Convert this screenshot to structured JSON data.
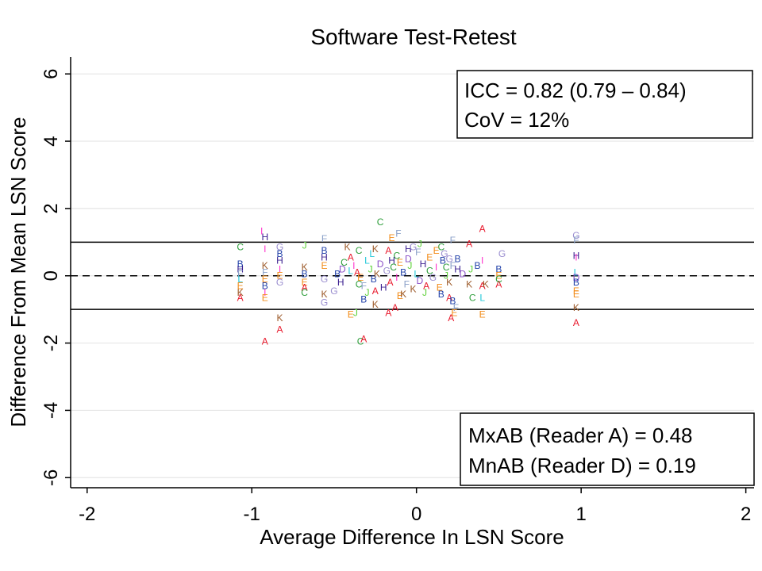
{
  "chart_data": {
    "type": "scatter",
    "title": "Software Test-Retest",
    "xlabel": "Average Difference In LSN Score",
    "ylabel": "Difference From Mean LSN Score",
    "xlim": [
      -2.1,
      2.05
    ],
    "ylim": [
      -6.3,
      6.5
    ],
    "xticks": [
      -2,
      -1,
      0,
      1,
      2
    ],
    "yticks": [
      -6,
      -4,
      -2,
      0,
      2,
      4,
      6
    ],
    "grid": "horizontal",
    "reference_lines": [
      {
        "y": 1,
        "style": "solid"
      },
      {
        "y": 0,
        "style": "dashed"
      },
      {
        "y": -1,
        "style": "solid"
      }
    ],
    "stats_box_top": {
      "line1": "ICC  = 0.82 (0.79 – 0.84)",
      "line2": "CoV = 12%"
    },
    "stats_box_bottom": {
      "line1": "MxAB (Reader A) = 0.48",
      "line2": "MnAB (Reader D) = 0.19"
    },
    "marker_colors": {
      "A": "#e8192c",
      "B": "#1f3fa8",
      "C": "#2e9e3b",
      "D": "#8a4fc7",
      "E": "#f28c1a",
      "F": "#8aa0c8",
      "G": "#9b8fd0",
      "H": "#3a1f8f",
      "I": "#ff33cc",
      "J": "#5fd13a",
      "K": "#9c5a2a",
      "L": "#22c8d8"
    },
    "points": [
      {
        "r": "I",
        "x": -0.94,
        "y": 1.33
      },
      {
        "r": "H",
        "x": -0.92,
        "y": 1.15
      },
      {
        "r": "I",
        "x": -0.92,
        "y": 0.8
      },
      {
        "r": "C",
        "x": -1.07,
        "y": 0.85
      },
      {
        "r": "B",
        "x": -1.07,
        "y": 0.35
      },
      {
        "r": "H",
        "x": -1.07,
        "y": 0.2
      },
      {
        "r": "F",
        "x": -1.07,
        "y": 0.05
      },
      {
        "r": "L",
        "x": -1.07,
        "y": -0.1
      },
      {
        "r": "E",
        "x": -1.07,
        "y": -0.3
      },
      {
        "r": "K",
        "x": -1.07,
        "y": -0.5
      },
      {
        "r": "A",
        "x": -1.07,
        "y": -0.65
      },
      {
        "r": "K",
        "x": -0.92,
        "y": 0.3
      },
      {
        "r": "F",
        "x": -0.92,
        "y": 0.1
      },
      {
        "r": "E",
        "x": -0.92,
        "y": -0.1
      },
      {
        "r": "B",
        "x": -0.92,
        "y": -0.3
      },
      {
        "r": "I",
        "x": -0.92,
        "y": -0.5
      },
      {
        "r": "E",
        "x": -0.92,
        "y": -0.65
      },
      {
        "r": "G",
        "x": -0.83,
        "y": 0.85
      },
      {
        "r": "B",
        "x": -0.83,
        "y": 0.65
      },
      {
        "r": "H",
        "x": -0.83,
        "y": 0.45
      },
      {
        "r": "I",
        "x": -0.83,
        "y": 0.2
      },
      {
        "r": "E",
        "x": -0.83,
        "y": 0.0
      },
      {
        "r": "G",
        "x": -0.83,
        "y": -0.2
      },
      {
        "r": "K",
        "x": -0.83,
        "y": -1.25
      },
      {
        "r": "A",
        "x": -0.83,
        "y": -1.6
      },
      {
        "r": "A",
        "x": -0.92,
        "y": -1.95
      },
      {
        "r": "J",
        "x": -0.68,
        "y": 0.9
      },
      {
        "r": "K",
        "x": -0.68,
        "y": 0.25
      },
      {
        "r": "B",
        "x": -0.68,
        "y": 0.05
      },
      {
        "r": "E",
        "x": -0.68,
        "y": -0.2
      },
      {
        "r": "A",
        "x": -0.68,
        "y": -0.35
      },
      {
        "r": "C",
        "x": -0.68,
        "y": -0.5
      },
      {
        "r": "F",
        "x": -0.56,
        "y": 1.1
      },
      {
        "r": "B",
        "x": -0.56,
        "y": 0.75
      },
      {
        "r": "H",
        "x": -0.56,
        "y": 0.55
      },
      {
        "r": "E",
        "x": -0.56,
        "y": 0.3
      },
      {
        "r": "G",
        "x": -0.56,
        "y": -0.1
      },
      {
        "r": "K",
        "x": -0.56,
        "y": -0.55
      },
      {
        "r": "G",
        "x": -0.56,
        "y": -0.8
      },
      {
        "r": "G",
        "x": -0.5,
        "y": -0.45
      },
      {
        "r": "K",
        "x": -0.42,
        "y": 0.85
      },
      {
        "r": "C",
        "x": -0.35,
        "y": 0.75
      },
      {
        "r": "A",
        "x": -0.4,
        "y": 0.55
      },
      {
        "r": "E",
        "x": -0.4,
        "y": -1.15
      },
      {
        "r": "J",
        "x": -0.37,
        "y": -1.1
      },
      {
        "r": "C",
        "x": -0.34,
        "y": -1.95
      },
      {
        "r": "A",
        "x": -0.32,
        "y": -1.88
      },
      {
        "r": "C",
        "x": -0.22,
        "y": 1.6
      },
      {
        "r": "F",
        "x": -0.11,
        "y": 1.25
      },
      {
        "r": "E",
        "x": -0.15,
        "y": 1.12
      },
      {
        "r": "K",
        "x": -0.25,
        "y": 0.8
      },
      {
        "r": "A",
        "x": -0.17,
        "y": 0.75
      },
      {
        "r": "H",
        "x": -0.05,
        "y": 0.8
      },
      {
        "r": "C",
        "x": -0.12,
        "y": 0.6
      },
      {
        "r": "L",
        "x": -0.27,
        "y": 0.65
      },
      {
        "r": "G",
        "x": -0.02,
        "y": 0.85
      },
      {
        "r": "J",
        "x": 0.02,
        "y": 0.95
      },
      {
        "r": "F",
        "x": 0.01,
        "y": 0.7
      },
      {
        "r": "A",
        "x": -0.17,
        "y": -1.1
      },
      {
        "r": "A",
        "x": -0.13,
        "y": -0.95
      },
      {
        "r": "K",
        "x": -0.25,
        "y": -0.85
      },
      {
        "r": "B",
        "x": -0.32,
        "y": -0.7
      },
      {
        "r": "E",
        "x": -0.1,
        "y": -0.6
      },
      {
        "r": "J",
        "x": -0.3,
        "y": -0.5
      },
      {
        "r": "D",
        "x": -0.45,
        "y": 0.2
      },
      {
        "r": "B",
        "x": -0.48,
        "y": 0.05
      },
      {
        "r": "H",
        "x": -0.46,
        "y": -0.2
      },
      {
        "r": "C",
        "x": -0.44,
        "y": 0.4
      },
      {
        "r": "I",
        "x": -0.38,
        "y": 0.3
      },
      {
        "r": "A",
        "x": -0.36,
        "y": 0.1
      },
      {
        "r": "E",
        "x": -0.34,
        "y": -0.05
      },
      {
        "r": "F",
        "x": -0.32,
        "y": -0.3
      },
      {
        "r": "L",
        "x": -0.3,
        "y": 0.45
      },
      {
        "r": "J",
        "x": -0.28,
        "y": 0.2
      },
      {
        "r": "B",
        "x": -0.26,
        "y": -0.1
      },
      {
        "r": "K",
        "x": -0.24,
        "y": 0.05
      },
      {
        "r": "D",
        "x": -0.22,
        "y": 0.35
      },
      {
        "r": "H",
        "x": -0.2,
        "y": -0.35
      },
      {
        "r": "G",
        "x": -0.18,
        "y": 0.15
      },
      {
        "r": "A",
        "x": -0.16,
        "y": -0.2
      },
      {
        "r": "C",
        "x": -0.14,
        "y": 0.25
      },
      {
        "r": "I",
        "x": -0.12,
        "y": -0.05
      },
      {
        "r": "E",
        "x": -0.1,
        "y": 0.4
      },
      {
        "r": "B",
        "x": -0.08,
        "y": 0.1
      },
      {
        "r": "F",
        "x": -0.06,
        "y": -0.25
      },
      {
        "r": "J",
        "x": -0.04,
        "y": 0.3
      },
      {
        "r": "K",
        "x": -0.02,
        "y": -0.4
      },
      {
        "r": "L",
        "x": 0.0,
        "y": 0.05
      },
      {
        "r": "D",
        "x": 0.02,
        "y": -0.15
      },
      {
        "r": "H",
        "x": 0.04,
        "y": 0.35
      },
      {
        "r": "A",
        "x": 0.06,
        "y": -0.3
      },
      {
        "r": "C",
        "x": 0.08,
        "y": 0.15
      },
      {
        "r": "G",
        "x": 0.1,
        "y": -0.05
      },
      {
        "r": "I",
        "x": 0.12,
        "y": 0.25
      },
      {
        "r": "E",
        "x": 0.14,
        "y": -0.35
      },
      {
        "r": "B",
        "x": 0.16,
        "y": 0.45
      },
      {
        "r": "J",
        "x": 0.18,
        "y": 0.0
      },
      {
        "r": "K",
        "x": 0.2,
        "y": -0.2
      },
      {
        "r": "F",
        "x": 0.22,
        "y": 0.3
      },
      {
        "r": "D",
        "x": -0.05,
        "y": 0.5
      },
      {
        "r": "H",
        "x": -0.15,
        "y": 0.45
      },
      {
        "r": "A",
        "x": -0.25,
        "y": -0.45
      },
      {
        "r": "C",
        "x": -0.35,
        "y": -0.25
      },
      {
        "r": "J",
        "x": 0.05,
        "y": -0.5
      },
      {
        "r": "B",
        "x": 0.15,
        "y": -0.55
      },
      {
        "r": "E",
        "x": 0.08,
        "y": 0.55
      },
      {
        "r": "K",
        "x": -0.08,
        "y": -0.55
      },
      {
        "r": "L",
        "x": -0.4,
        "y": 0.15
      },
      {
        "r": "G",
        "x": 0.2,
        "y": 0.5
      },
      {
        "r": "C",
        "x": 0.15,
        "y": 0.85
      },
      {
        "r": "E",
        "x": 0.12,
        "y": 0.75
      },
      {
        "r": "G",
        "x": 0.17,
        "y": 0.65
      },
      {
        "r": "F",
        "x": 0.22,
        "y": 1.05
      },
      {
        "r": "A",
        "x": 0.32,
        "y": 0.95
      },
      {
        "r": "B",
        "x": 0.25,
        "y": 0.5
      },
      {
        "r": "A",
        "x": 0.2,
        "y": -0.65
      },
      {
        "r": "B",
        "x": 0.22,
        "y": -0.75
      },
      {
        "r": "F",
        "x": 0.24,
        "y": -0.95
      },
      {
        "r": "E",
        "x": 0.23,
        "y": -1.1
      },
      {
        "r": "A",
        "x": 0.21,
        "y": -1.25
      },
      {
        "r": "C",
        "x": 0.34,
        "y": -0.65
      },
      {
        "r": "K",
        "x": 0.32,
        "y": -0.25
      },
      {
        "r": "B",
        "x": 0.37,
        "y": 0.3
      },
      {
        "r": "J",
        "x": 0.33,
        "y": 0.2
      },
      {
        "r": "C",
        "x": 0.18,
        "y": 0.25
      },
      {
        "r": "H",
        "x": 0.25,
        "y": 0.2
      },
      {
        "r": "D",
        "x": 0.28,
        "y": 0.05
      },
      {
        "r": "A",
        "x": 0.4,
        "y": 1.4
      },
      {
        "r": "I",
        "x": 0.4,
        "y": 0.45
      },
      {
        "r": "A",
        "x": 0.4,
        "y": -0.3
      },
      {
        "r": "L",
        "x": 0.4,
        "y": -0.65
      },
      {
        "r": "E",
        "x": 0.4,
        "y": -1.15
      },
      {
        "r": "K",
        "x": 0.42,
        "y": -0.25
      },
      {
        "r": "G",
        "x": 0.52,
        "y": 0.65
      },
      {
        "r": "B",
        "x": 0.5,
        "y": 0.2
      },
      {
        "r": "E",
        "x": 0.5,
        "y": 0.0
      },
      {
        "r": "A",
        "x": 0.5,
        "y": -0.25
      },
      {
        "r": "C",
        "x": 0.5,
        "y": -0.1
      },
      {
        "r": "G",
        "x": 0.97,
        "y": 1.2
      },
      {
        "r": "F",
        "x": 0.97,
        "y": 1.05
      },
      {
        "r": "H",
        "x": 0.97,
        "y": 0.6
      },
      {
        "r": "I",
        "x": 0.97,
        "y": 0.55
      },
      {
        "r": "L",
        "x": 0.97,
        "y": 0.1
      },
      {
        "r": "D",
        "x": 0.97,
        "y": -0.05
      },
      {
        "r": "B",
        "x": 0.97,
        "y": -0.2
      },
      {
        "r": "E",
        "x": 0.97,
        "y": -0.45
      },
      {
        "r": "E",
        "x": 0.97,
        "y": -0.55
      },
      {
        "r": "K",
        "x": 0.97,
        "y": -0.95
      },
      {
        "r": "A",
        "x": 0.97,
        "y": -1.4
      }
    ]
  }
}
